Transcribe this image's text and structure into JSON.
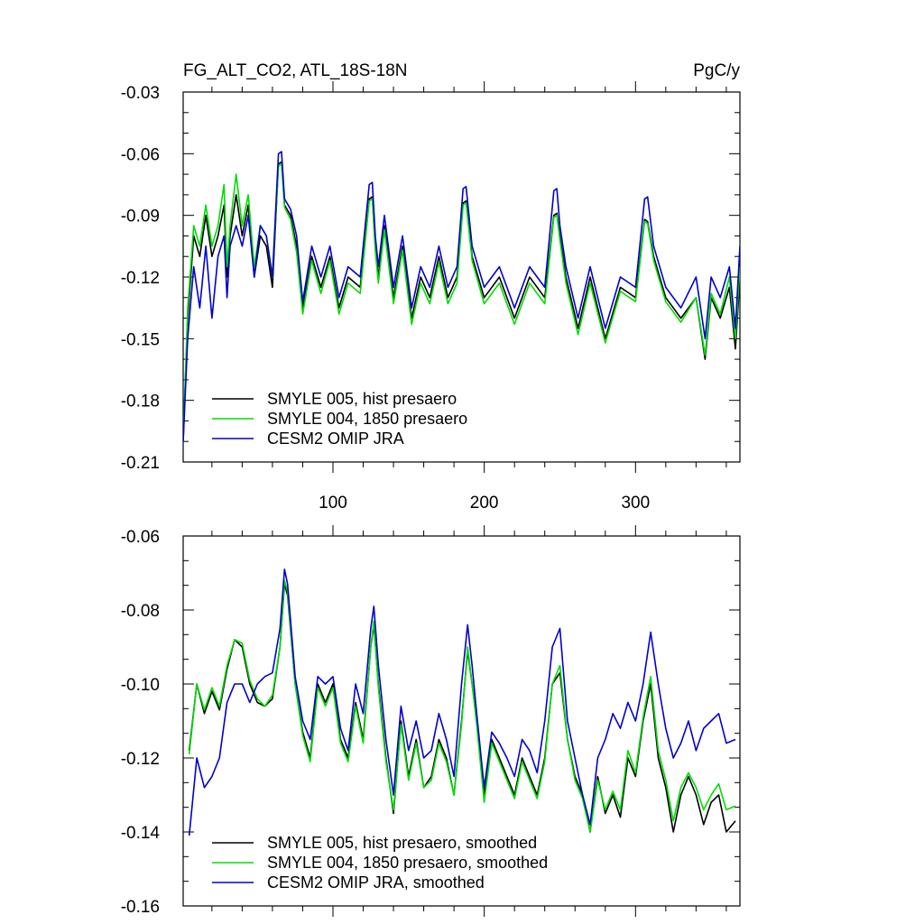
{
  "figure": {
    "title": "FG_ALT_CO2, ATL_18S-18N",
    "units": "PgC/y"
  },
  "chart_data": [
    {
      "type": "line",
      "title": "FG_ALT_CO2, ATL_18S-18N",
      "units_label": "PgC/y",
      "xlabel": "",
      "ylabel": "",
      "xlim": [
        1,
        369
      ],
      "ylim": [
        -0.21,
        -0.03
      ],
      "xticks": [
        100,
        200,
        300
      ],
      "xtick_labels": [
        "100",
        "200",
        "300"
      ],
      "yticks": [
        -0.21,
        -0.18,
        -0.15,
        -0.12,
        -0.09,
        -0.06,
        -0.03
      ],
      "ytick_labels": [
        "-0.21",
        "-0.18",
        "-0.15",
        "-0.12",
        "-0.09",
        "-0.06",
        "-0.03"
      ],
      "grid": false,
      "legend_position": "bottom-left",
      "series": [
        {
          "name": "SMYLE 005, hist presaero",
          "color": "#000000",
          "x": [
            1,
            4,
            8,
            12,
            16,
            20,
            24,
            28,
            30,
            32,
            36,
            40,
            44,
            48,
            52,
            56,
            60,
            64,
            66,
            68,
            72,
            76,
            80,
            86,
            92,
            98,
            104,
            110,
            118,
            124,
            126,
            128,
            130,
            134,
            140,
            146,
            152,
            158,
            164,
            170,
            176,
            182,
            186,
            188,
            192,
            200,
            210,
            220,
            230,
            240,
            246,
            248,
            250,
            254,
            262,
            270,
            280,
            290,
            300,
            306,
            308,
            312,
            320,
            330,
            340,
            346,
            350,
            356,
            362,
            366,
            369
          ],
          "y": [
            -0.2,
            -0.14,
            -0.1,
            -0.11,
            -0.09,
            -0.11,
            -0.1,
            -0.085,
            -0.12,
            -0.1,
            -0.08,
            -0.1,
            -0.085,
            -0.12,
            -0.1,
            -0.105,
            -0.125,
            -0.065,
            -0.064,
            -0.085,
            -0.09,
            -0.105,
            -0.135,
            -0.11,
            -0.125,
            -0.11,
            -0.135,
            -0.12,
            -0.125,
            -0.082,
            -0.081,
            -0.105,
            -0.12,
            -0.095,
            -0.13,
            -0.105,
            -0.14,
            -0.12,
            -0.13,
            -0.11,
            -0.13,
            -0.12,
            -0.084,
            -0.083,
            -0.11,
            -0.13,
            -0.12,
            -0.14,
            -0.12,
            -0.13,
            -0.09,
            -0.089,
            -0.1,
            -0.12,
            -0.145,
            -0.12,
            -0.15,
            -0.125,
            -0.13,
            -0.092,
            -0.093,
            -0.11,
            -0.13,
            -0.14,
            -0.13,
            -0.16,
            -0.13,
            -0.14,
            -0.125,
            -0.155,
            -0.12
          ]
        },
        {
          "name": "SMYLE 004, 1850 presaero",
          "color": "#00dd00",
          "x": [
            1,
            4,
            8,
            12,
            16,
            20,
            24,
            28,
            30,
            32,
            36,
            40,
            44,
            48,
            52,
            56,
            60,
            64,
            66,
            68,
            72,
            76,
            80,
            86,
            92,
            98,
            104,
            110,
            118,
            124,
            126,
            128,
            130,
            134,
            140,
            146,
            152,
            158,
            164,
            170,
            176,
            182,
            186,
            188,
            192,
            200,
            210,
            220,
            230,
            240,
            246,
            248,
            250,
            254,
            262,
            270,
            280,
            290,
            300,
            306,
            308,
            312,
            320,
            330,
            340,
            346,
            350,
            356,
            362,
            366,
            369
          ],
          "y": [
            -0.2,
            -0.135,
            -0.095,
            -0.105,
            -0.085,
            -0.105,
            -0.095,
            -0.075,
            -0.115,
            -0.095,
            -0.07,
            -0.095,
            -0.08,
            -0.115,
            -0.095,
            -0.1,
            -0.12,
            -0.066,
            -0.065,
            -0.086,
            -0.092,
            -0.108,
            -0.138,
            -0.112,
            -0.128,
            -0.112,
            -0.138,
            -0.123,
            -0.128,
            -0.083,
            -0.082,
            -0.107,
            -0.123,
            -0.097,
            -0.133,
            -0.107,
            -0.143,
            -0.123,
            -0.133,
            -0.113,
            -0.133,
            -0.123,
            -0.085,
            -0.084,
            -0.112,
            -0.133,
            -0.123,
            -0.143,
            -0.123,
            -0.133,
            -0.091,
            -0.09,
            -0.102,
            -0.123,
            -0.148,
            -0.123,
            -0.152,
            -0.127,
            -0.132,
            -0.093,
            -0.094,
            -0.112,
            -0.132,
            -0.142,
            -0.13,
            -0.158,
            -0.128,
            -0.138,
            -0.12,
            -0.15,
            -0.115
          ]
        },
        {
          "name": "CESM2 OMIP JRA",
          "color": "#0000cc",
          "x": [
            1,
            4,
            8,
            12,
            16,
            20,
            24,
            28,
            30,
            32,
            36,
            40,
            44,
            48,
            52,
            56,
            60,
            64,
            66,
            68,
            72,
            76,
            80,
            86,
            92,
            98,
            104,
            110,
            118,
            124,
            126,
            128,
            130,
            134,
            140,
            146,
            152,
            158,
            164,
            170,
            176,
            182,
            186,
            188,
            192,
            200,
            210,
            220,
            230,
            240,
            246,
            248,
            250,
            254,
            262,
            270,
            280,
            290,
            300,
            306,
            308,
            312,
            320,
            330,
            340,
            346,
            350,
            356,
            362,
            366,
            369
          ],
          "y": [
            -0.2,
            -0.15,
            -0.115,
            -0.135,
            -0.105,
            -0.14,
            -0.11,
            -0.1,
            -0.13,
            -0.105,
            -0.095,
            -0.105,
            -0.09,
            -0.12,
            -0.095,
            -0.1,
            -0.12,
            -0.06,
            -0.059,
            -0.082,
            -0.087,
            -0.1,
            -0.132,
            -0.105,
            -0.12,
            -0.105,
            -0.13,
            -0.115,
            -0.12,
            -0.075,
            -0.074,
            -0.1,
            -0.115,
            -0.09,
            -0.125,
            -0.1,
            -0.135,
            -0.115,
            -0.125,
            -0.105,
            -0.125,
            -0.115,
            -0.077,
            -0.076,
            -0.105,
            -0.125,
            -0.115,
            -0.135,
            -0.115,
            -0.125,
            -0.078,
            -0.077,
            -0.095,
            -0.115,
            -0.14,
            -0.115,
            -0.145,
            -0.12,
            -0.125,
            -0.082,
            -0.081,
            -0.105,
            -0.125,
            -0.135,
            -0.12,
            -0.15,
            -0.12,
            -0.13,
            -0.115,
            -0.145,
            -0.105
          ]
        }
      ]
    },
    {
      "type": "line",
      "title": "",
      "xlabel": "",
      "ylabel": "",
      "xlim": [
        1,
        369
      ],
      "ylim": [
        -0.16,
        -0.06
      ],
      "xticks": [
        100,
        200,
        300
      ],
      "xtick_labels": [],
      "yticks": [
        -0.16,
        -0.14,
        -0.12,
        -0.1,
        -0.08,
        -0.06
      ],
      "ytick_labels": [
        "-0.16",
        "-0.14",
        "-0.12",
        "-0.10",
        "-0.08",
        "-0.06"
      ],
      "grid": false,
      "legend_position": "bottom-left",
      "series": [
        {
          "name": "SMYLE 005, hist presaero, smoothed",
          "color": "#000000",
          "x": [
            5,
            10,
            15,
            20,
            25,
            30,
            35,
            40,
            45,
            50,
            55,
            60,
            65,
            68,
            70,
            75,
            80,
            85,
            90,
            95,
            100,
            105,
            110,
            115,
            120,
            125,
            127,
            130,
            135,
            140,
            145,
            150,
            155,
            160,
            165,
            170,
            175,
            180,
            185,
            189,
            192,
            195,
            200,
            205,
            210,
            215,
            220,
            225,
            230,
            235,
            240,
            245,
            250,
            255,
            260,
            265,
            270,
            275,
            280,
            285,
            290,
            295,
            300,
            305,
            310,
            315,
            320,
            325,
            330,
            335,
            340,
            345,
            350,
            355,
            360,
            366
          ],
          "y": [
            -0.118,
            -0.1,
            -0.108,
            -0.102,
            -0.107,
            -0.096,
            -0.088,
            -0.09,
            -0.1,
            -0.105,
            -0.106,
            -0.104,
            -0.09,
            -0.073,
            -0.076,
            -0.1,
            -0.113,
            -0.12,
            -0.1,
            -0.105,
            -0.1,
            -0.115,
            -0.12,
            -0.105,
            -0.115,
            -0.09,
            -0.084,
            -0.1,
            -0.12,
            -0.135,
            -0.11,
            -0.125,
            -0.115,
            -0.128,
            -0.125,
            -0.115,
            -0.12,
            -0.13,
            -0.11,
            -0.091,
            -0.1,
            -0.11,
            -0.13,
            -0.115,
            -0.12,
            -0.125,
            -0.13,
            -0.12,
            -0.125,
            -0.13,
            -0.12,
            -0.1,
            -0.097,
            -0.115,
            -0.125,
            -0.13,
            -0.14,
            -0.125,
            -0.135,
            -0.13,
            -0.136,
            -0.12,
            -0.125,
            -0.11,
            -0.1,
            -0.12,
            -0.128,
            -0.14,
            -0.13,
            -0.125,
            -0.13,
            -0.138,
            -0.132,
            -0.13,
            -0.14,
            -0.137
          ]
        },
        {
          "name": "SMYLE 004, 1850 presaero, smoothed",
          "color": "#00dd00",
          "x": [
            5,
            10,
            15,
            20,
            25,
            30,
            35,
            40,
            45,
            50,
            55,
            60,
            65,
            68,
            70,
            75,
            80,
            85,
            90,
            95,
            100,
            105,
            110,
            115,
            120,
            125,
            127,
            130,
            135,
            140,
            145,
            150,
            155,
            160,
            165,
            170,
            175,
            180,
            185,
            189,
            192,
            195,
            200,
            205,
            210,
            215,
            220,
            225,
            230,
            235,
            240,
            245,
            250,
            255,
            260,
            265,
            270,
            275,
            280,
            285,
            290,
            295,
            300,
            305,
            310,
            315,
            320,
            325,
            330,
            335,
            340,
            345,
            350,
            355,
            360,
            366
          ],
          "y": [
            -0.119,
            -0.1,
            -0.107,
            -0.101,
            -0.106,
            -0.095,
            -0.088,
            -0.089,
            -0.099,
            -0.104,
            -0.106,
            -0.103,
            -0.09,
            -0.072,
            -0.075,
            -0.1,
            -0.114,
            -0.121,
            -0.101,
            -0.106,
            -0.101,
            -0.116,
            -0.121,
            -0.106,
            -0.116,
            -0.09,
            -0.083,
            -0.101,
            -0.121,
            -0.134,
            -0.111,
            -0.126,
            -0.116,
            -0.128,
            -0.126,
            -0.116,
            -0.121,
            -0.13,
            -0.111,
            -0.09,
            -0.1,
            -0.111,
            -0.132,
            -0.116,
            -0.121,
            -0.126,
            -0.131,
            -0.121,
            -0.126,
            -0.131,
            -0.121,
            -0.1,
            -0.095,
            -0.115,
            -0.126,
            -0.131,
            -0.14,
            -0.126,
            -0.134,
            -0.129,
            -0.134,
            -0.118,
            -0.124,
            -0.109,
            -0.098,
            -0.118,
            -0.126,
            -0.137,
            -0.128,
            -0.124,
            -0.128,
            -0.134,
            -0.13,
            -0.127,
            -0.134,
            -0.133
          ]
        },
        {
          "name": "CESM2 OMIP JRA, smoothed",
          "color": "#0000cc",
          "x": [
            5,
            10,
            15,
            20,
            25,
            30,
            35,
            40,
            45,
            50,
            55,
            60,
            65,
            68,
            70,
            75,
            80,
            85,
            90,
            95,
            100,
            105,
            110,
            115,
            120,
            125,
            127,
            130,
            135,
            140,
            145,
            150,
            155,
            160,
            165,
            170,
            175,
            180,
            185,
            189,
            192,
            195,
            200,
            205,
            210,
            215,
            220,
            225,
            230,
            235,
            240,
            245,
            250,
            255,
            260,
            265,
            270,
            275,
            280,
            285,
            290,
            295,
            300,
            305,
            310,
            315,
            320,
            325,
            330,
            335,
            340,
            345,
            350,
            355,
            360,
            366
          ],
          "y": [
            -0.141,
            -0.12,
            -0.128,
            -0.125,
            -0.12,
            -0.105,
            -0.1,
            -0.1,
            -0.105,
            -0.1,
            -0.098,
            -0.097,
            -0.085,
            -0.069,
            -0.073,
            -0.098,
            -0.11,
            -0.115,
            -0.098,
            -0.1,
            -0.098,
            -0.112,
            -0.118,
            -0.1,
            -0.108,
            -0.085,
            -0.079,
            -0.095,
            -0.115,
            -0.13,
            -0.106,
            -0.118,
            -0.11,
            -0.12,
            -0.118,
            -0.108,
            -0.115,
            -0.125,
            -0.1,
            -0.084,
            -0.095,
            -0.108,
            -0.128,
            -0.113,
            -0.116,
            -0.12,
            -0.125,
            -0.115,
            -0.118,
            -0.124,
            -0.11,
            -0.09,
            -0.085,
            -0.11,
            -0.12,
            -0.13,
            -0.138,
            -0.12,
            -0.115,
            -0.108,
            -0.112,
            -0.105,
            -0.11,
            -0.1,
            -0.086,
            -0.1,
            -0.112,
            -0.12,
            -0.116,
            -0.11,
            -0.118,
            -0.112,
            -0.11,
            -0.108,
            -0.116,
            -0.115
          ]
        }
      ]
    }
  ]
}
